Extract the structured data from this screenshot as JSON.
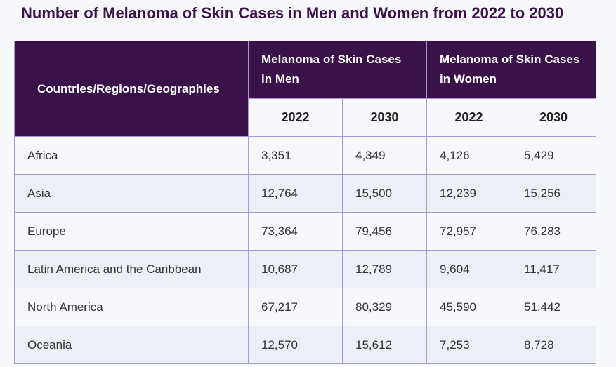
{
  "title": "Number of Melanoma of Skin Cases in Men and Women from 2022 to 2030",
  "table": {
    "region_header": "Countries/Regions/Geographies",
    "men_header": "Melanoma of Skin Cases in Men",
    "women_header": "Melanoma of Skin Cases in Women",
    "years": [
      "2022",
      "2030",
      "2022",
      "2030"
    ],
    "rows": [
      {
        "region": "Africa",
        "men_2022": "3,351",
        "men_2030": "4,349",
        "women_2022": "4,126",
        "women_2030": "5,429"
      },
      {
        "region": "Asia",
        "men_2022": "12,764",
        "men_2030": "15,500",
        "women_2022": "12,239",
        "women_2030": "15,256"
      },
      {
        "region": "Europe",
        "men_2022": "73,364",
        "men_2030": "79,456",
        "women_2022": "72,957",
        "women_2030": "76,283"
      },
      {
        "region": "Latin America and the Caribbean",
        "men_2022": "10,687",
        "men_2030": "12,789",
        "women_2022": "9,604",
        "women_2030": "11,417"
      },
      {
        "region": "North America",
        "men_2022": "67,217",
        "men_2030": "80,329",
        "women_2022": "45,590",
        "women_2030": "51,442"
      },
      {
        "region": "Oceania",
        "men_2022": "12,570",
        "men_2030": "15,612",
        "women_2022": "7,253",
        "women_2030": "8,728"
      }
    ]
  }
}
